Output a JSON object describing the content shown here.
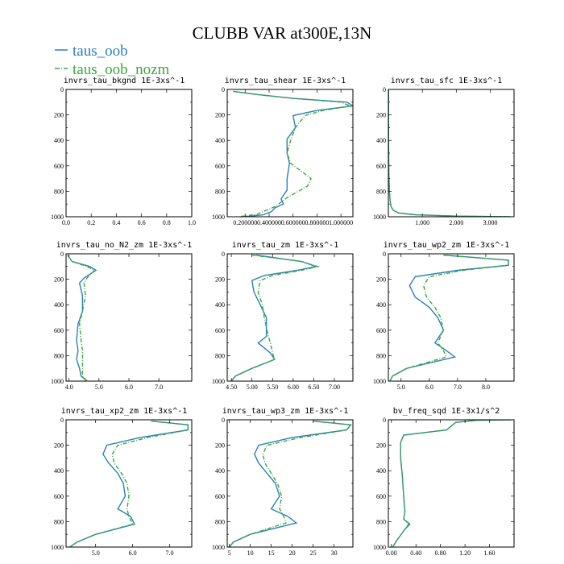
{
  "figure_title": "CLUBB VAR at300E,13N",
  "legend": [
    {
      "label": "taus_oob",
      "color": "#2c7fb8",
      "style": "solid"
    },
    {
      "label": "taus_oob_nozm",
      "color": "#3aa83a",
      "style": "dashdot"
    }
  ],
  "chart_data": [
    {
      "type": "line",
      "title": "invrs_tau_bkgnd   1E-3xs^-1",
      "xlim": [
        0,
        1.0
      ],
      "ylim": [
        1000,
        0
      ],
      "xticks": [
        0.0,
        0.2,
        0.4,
        0.6,
        0.8,
        1.0
      ],
      "xtick_labels": [
        "0.0",
        "0.2",
        "0.4",
        "0.6",
        "0.8",
        "1.0"
      ],
      "yticks": [
        0,
        200,
        400,
        600,
        800,
        1000
      ],
      "series": []
    },
    {
      "type": "line",
      "title": "invrs_tau_shear   1E-3xs^-1",
      "xlim": [
        0.05,
        1.1
      ],
      "ylim": [
        1000,
        0
      ],
      "xticks": [
        0.2,
        0.4,
        0.6,
        0.8,
        1.0
      ],
      "xtick_labels": [
        "0.200000",
        "0.400000",
        "0.600000",
        "0.800000",
        "1.000000"
      ],
      "yticks": [
        0,
        200,
        400,
        600,
        800,
        1000
      ],
      "series": [
        {
          "name": "taus_oob",
          "x": [
            0.1,
            0.3,
            0.6,
            1.05,
            1.1,
            0.8,
            0.6,
            0.62,
            0.55,
            0.55,
            0.57,
            0.55,
            0.55,
            0.5,
            0.52,
            0.45,
            0.42,
            0.35,
            0.2
          ],
          "y": [
            15,
            40,
            70,
            100,
            130,
            165,
            205,
            300,
            390,
            500,
            580,
            700,
            790,
            860,
            900,
            930,
            960,
            985,
            1000
          ]
        },
        {
          "name": "taus_oob_nozm",
          "x": [
            0.1,
            0.3,
            0.6,
            1.0,
            1.08,
            0.85,
            0.7,
            0.62,
            0.58,
            0.55,
            0.58,
            0.68,
            0.75,
            0.72,
            0.55,
            0.45,
            0.3,
            0.15
          ],
          "y": [
            15,
            40,
            70,
            100,
            130,
            165,
            205,
            300,
            400,
            500,
            580,
            650,
            700,
            760,
            850,
            920,
            980,
            1000
          ]
        }
      ]
    },
    {
      "type": "line",
      "title": "invrs_tau_sfc   1E-3xs^-1",
      "xlim": [
        0.0,
        3.7
      ],
      "ylim": [
        1000,
        0
      ],
      "xticks": [
        1.0,
        2.0,
        3.0
      ],
      "xtick_labels": [
        "1.000",
        "2.000",
        "3.000"
      ],
      "yticks": [
        0,
        200,
        400,
        600,
        800,
        1000
      ],
      "series": [
        {
          "name": "taus_oob",
          "x": [
            0.004,
            0.005,
            0.008,
            0.012,
            0.02,
            0.03,
            0.05,
            0.08,
            0.15,
            0.3,
            0.8,
            2.0,
            3.6
          ],
          "y": [
            0,
            200,
            400,
            600,
            700,
            800,
            870,
            920,
            950,
            970,
            985,
            995,
            1000
          ]
        },
        {
          "name": "taus_oob_nozm",
          "x": [
            0.004,
            0.005,
            0.008,
            0.012,
            0.02,
            0.03,
            0.05,
            0.08,
            0.15,
            0.3,
            0.8,
            2.0,
            3.6
          ],
          "y": [
            0,
            200,
            400,
            600,
            700,
            800,
            870,
            920,
            950,
            970,
            985,
            995,
            1000
          ]
        }
      ]
    },
    {
      "type": "line",
      "title": "invrs_tau_no_N2_zm   1E-3xs^-1",
      "xlim": [
        3.9,
        8.1
      ],
      "ylim": [
        1000,
        0
      ],
      "xticks": [
        4.0,
        5.0,
        6.0,
        7.0
      ],
      "xtick_labels": [
        "4.0",
        "5.0",
        "6.0",
        "7.0"
      ],
      "yticks": [
        0,
        200,
        400,
        600,
        800,
        1000
      ],
      "series": [
        {
          "name": "taus_oob",
          "x": [
            3.95,
            4.1,
            4.7,
            4.9,
            4.5,
            4.35,
            4.45,
            4.45,
            4.3,
            4.25,
            4.3,
            4.25,
            4.35,
            4.4,
            4.6
          ],
          "y": [
            10,
            60,
            100,
            130,
            190,
            230,
            330,
            450,
            550,
            680,
            760,
            830,
            900,
            960,
            1000
          ]
        },
        {
          "name": "taus_oob_nozm",
          "x": [
            3.95,
            4.1,
            4.6,
            4.85,
            4.6,
            4.5,
            4.55,
            4.45,
            4.35,
            4.4,
            4.45,
            4.45,
            4.45,
            4.45,
            4.6
          ],
          "y": [
            10,
            60,
            100,
            130,
            190,
            230,
            330,
            450,
            550,
            680,
            760,
            830,
            900,
            960,
            1000
          ]
        }
      ]
    },
    {
      "type": "line",
      "title": "invrs_tau_zm   1E-3xs^-1",
      "xlim": [
        4.4,
        7.45
      ],
      "ylim": [
        1000,
        0
      ],
      "xticks": [
        4.5,
        5.0,
        5.5,
        6.0,
        6.5,
        7.0
      ],
      "xtick_labels": [
        "4.50",
        "5.00",
        "5.50",
        "6.00",
        "6.50",
        "7.00"
      ],
      "yticks": [
        0,
        200,
        400,
        600,
        800,
        1000
      ],
      "series": [
        {
          "name": "taus_oob",
          "x": [
            5.1,
            6.2,
            6.55,
            6.1,
            5.3,
            5.0,
            5.05,
            5.2,
            5.35,
            5.35,
            5.15,
            5.45,
            5.55,
            5.0,
            4.6,
            4.5
          ],
          "y": [
            10,
            60,
            100,
            130,
            170,
            210,
            300,
            400,
            500,
            650,
            700,
            780,
            830,
            900,
            960,
            1000
          ]
        },
        {
          "name": "taus_oob_nozm",
          "x": [
            5.0,
            6.2,
            6.6,
            6.2,
            5.5,
            5.2,
            5.15,
            5.25,
            5.3,
            5.4,
            5.45,
            5.5,
            5.55,
            5.0,
            4.6,
            4.5
          ],
          "y": [
            10,
            60,
            100,
            130,
            170,
            210,
            300,
            400,
            500,
            650,
            700,
            780,
            830,
            900,
            960,
            1000
          ]
        }
      ]
    },
    {
      "type": "line",
      "title": "invrs_tau_wp2_zm   1E-3xs^-1",
      "xlim": [
        4.55,
        9.0
      ],
      "ylim": [
        1000,
        0
      ],
      "xticks": [
        5.0,
        6.0,
        7.0,
        8.0
      ],
      "xtick_labels": [
        "5.0",
        "6.0",
        "7.0",
        "8.0"
      ],
      "yticks": [
        0,
        200,
        400,
        600,
        800,
        1000
      ],
      "series": [
        {
          "name": "taus_oob",
          "x": [
            6.5,
            8.8,
            8.8,
            7.0,
            5.5,
            5.3,
            5.5,
            6.0,
            6.3,
            6.5,
            6.2,
            6.6,
            6.9,
            5.2,
            4.7,
            4.6
          ],
          "y": [
            10,
            50,
            90,
            130,
            180,
            250,
            340,
            420,
            500,
            600,
            700,
            760,
            810,
            900,
            960,
            1000
          ]
        },
        {
          "name": "taus_oob_nozm",
          "x": [
            6.5,
            8.8,
            8.8,
            7.2,
            6.0,
            5.8,
            5.9,
            6.2,
            6.4,
            6.5,
            6.3,
            6.5,
            6.6,
            5.2,
            4.7,
            4.6
          ],
          "y": [
            10,
            50,
            90,
            130,
            180,
            250,
            340,
            420,
            500,
            600,
            700,
            760,
            810,
            900,
            960,
            1000
          ]
        }
      ]
    },
    {
      "type": "line",
      "title": "invrs_tau_xp2_zm   1E-3xs^-1",
      "xlim": [
        4.2,
        7.6
      ],
      "ylim": [
        1000,
        0
      ],
      "xticks": [
        5.0,
        6.0,
        7.0
      ],
      "xtick_labels": [
        "5.0",
        "6.0",
        "7.0"
      ],
      "yticks": [
        0,
        200,
        400,
        600,
        800,
        1000
      ],
      "series": [
        {
          "name": "taus_oob",
          "x": [
            6.5,
            7.5,
            7.5,
            6.2,
            5.3,
            5.2,
            5.35,
            5.6,
            5.75,
            5.8,
            5.6,
            5.95,
            6.05,
            5.0,
            4.5,
            4.3
          ],
          "y": [
            10,
            40,
            80,
            140,
            200,
            270,
            340,
            420,
            500,
            600,
            700,
            760,
            820,
            900,
            960,
            1000
          ]
        },
        {
          "name": "taus_oob_nozm",
          "x": [
            6.5,
            7.5,
            7.5,
            6.4,
            5.6,
            5.45,
            5.5,
            5.7,
            5.85,
            5.9,
            5.85,
            5.9,
            6.0,
            5.0,
            4.5,
            4.3
          ],
          "y": [
            10,
            40,
            80,
            140,
            200,
            270,
            340,
            420,
            500,
            600,
            700,
            760,
            820,
            900,
            960,
            1000
          ]
        }
      ]
    },
    {
      "type": "line",
      "title": "invrs_tau_wp3_zm   1E-3xs^-1",
      "xlim": [
        4.5,
        34.5
      ],
      "ylim": [
        1000,
        0
      ],
      "xticks": [
        5,
        10,
        15,
        20,
        25,
        30
      ],
      "xtick_labels": [
        "5",
        "10",
        "15",
        "20",
        "25",
        "30"
      ],
      "yticks": [
        0,
        200,
        400,
        600,
        800,
        1000
      ],
      "series": [
        {
          "name": "taus_oob",
          "x": [
            25,
            34,
            33,
            20,
            12,
            11,
            12,
            14,
            16,
            17,
            15,
            19,
            21,
            10,
            6,
            5
          ],
          "y": [
            10,
            40,
            80,
            140,
            200,
            270,
            340,
            420,
            500,
            600,
            700,
            760,
            810,
            900,
            960,
            1000
          ]
        },
        {
          "name": "taus_oob_nozm",
          "x": [
            25,
            34,
            33,
            22,
            14,
            13,
            13.5,
            15,
            16.5,
            17.5,
            17,
            18,
            18.5,
            10,
            6,
            5
          ],
          "y": [
            10,
            40,
            80,
            140,
            200,
            270,
            340,
            420,
            500,
            600,
            700,
            760,
            810,
            900,
            960,
            1000
          ]
        }
      ]
    },
    {
      "type": "line",
      "title": "bv_freq_sqd   1E-3x1/s^2",
      "xlim": [
        -0.05,
        2.0
      ],
      "ylim": [
        1000,
        0
      ],
      "xticks": [
        0.0,
        0.4,
        0.8,
        1.2,
        1.6
      ],
      "xtick_labels": [
        "0.00",
        "0.40",
        "0.80",
        "1.20",
        "1.60"
      ],
      "yticks": [
        0,
        200,
        400,
        600,
        800,
        1000
      ],
      "series": [
        {
          "name": "taus_oob",
          "x": [
            1.95,
            1.4,
            1.05,
            0.9,
            0.2,
            0.15,
            0.15,
            0.18,
            0.2,
            0.22,
            0.2,
            0.3,
            0.22,
            0.1,
            0.02
          ],
          "y": [
            0,
            3,
            20,
            80,
            120,
            180,
            300,
            450,
            600,
            720,
            780,
            820,
            860,
            940,
            1000
          ]
        },
        {
          "name": "taus_oob_nozm",
          "x": [
            1.95,
            1.4,
            1.05,
            0.9,
            0.2,
            0.15,
            0.15,
            0.18,
            0.2,
            0.22,
            0.2,
            0.28,
            0.22,
            0.1,
            0.02
          ],
          "y": [
            0,
            3,
            20,
            80,
            120,
            180,
            300,
            450,
            600,
            720,
            780,
            820,
            860,
            940,
            1000
          ]
        }
      ]
    }
  ]
}
